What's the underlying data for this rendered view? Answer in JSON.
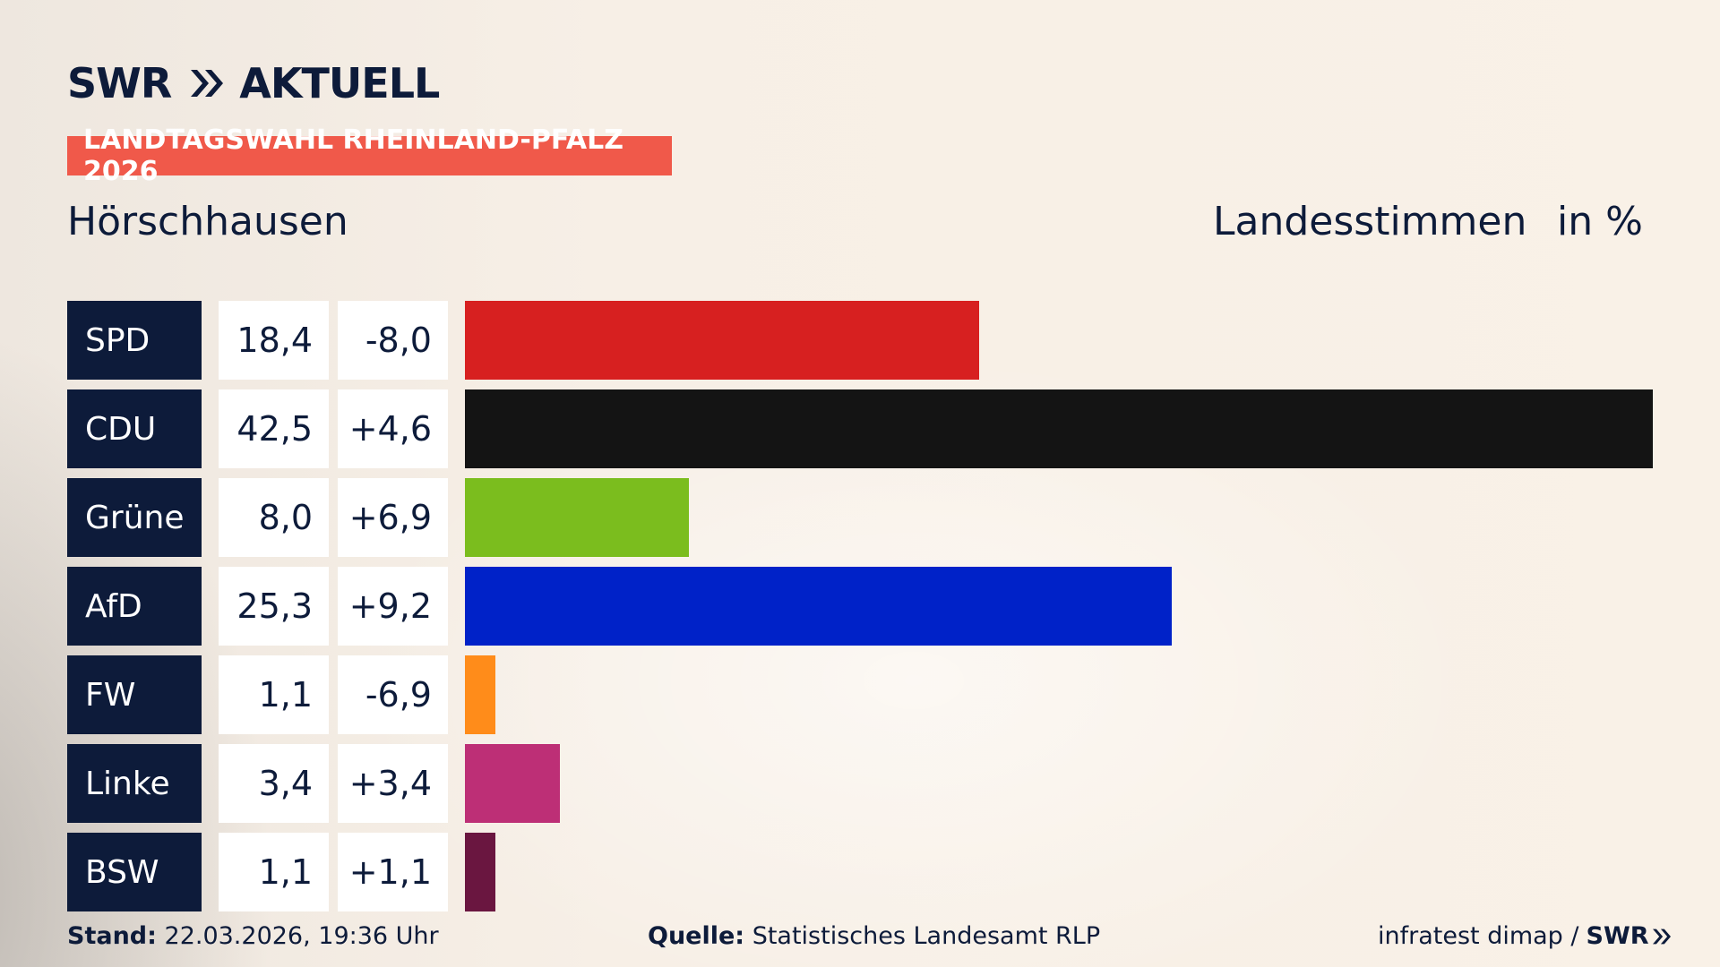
{
  "brand": {
    "swr": "SWR",
    "name": "AKTUELL"
  },
  "badge": "LANDTAGSWAHL RHEINLAND-PFALZ 2026",
  "location": "Hörschhausen",
  "measure": "Landesstimmen",
  "unit": "in %",
  "chart_data": {
    "type": "bar",
    "orientation": "horizontal",
    "title": "LANDTAGSWAHL RHEINLAND-PFALZ 2026",
    "subtitle": "Hörschhausen",
    "categories": [
      "SPD",
      "CDU",
      "Grüne",
      "AfD",
      "FW",
      "Linke",
      "BSW"
    ],
    "values": [
      18.4,
      42.5,
      8.0,
      25.3,
      1.1,
      3.4,
      1.1
    ],
    "value_labels": [
      "18,4",
      "42,5",
      "8,0",
      "25,3",
      "1,1",
      "3,4",
      "1,1"
    ],
    "change_labels": [
      "-8,0",
      "+4,6",
      "+6,9",
      "+9,2",
      "-6,9",
      "+3,4",
      "+1,1"
    ],
    "colors": [
      "#d72020",
      "#141414",
      "#7bbd1e",
      "#0022c8",
      "#ff8c1a",
      "#bd2f76",
      "#6a1640"
    ],
    "xlabel": "",
    "ylabel": "Landesstimmen in %",
    "xlim": [
      0,
      42.5
    ],
    "grid": false,
    "legend": "none"
  },
  "footer": {
    "stand_label": "Stand:",
    "stand_value": "22.03.2026, 19:36 Uhr",
    "source_label": "Quelle:",
    "source_value": "Statistisches Landesamt RLP",
    "credit": "infratest dimap /",
    "credit_brand": "SWR"
  }
}
